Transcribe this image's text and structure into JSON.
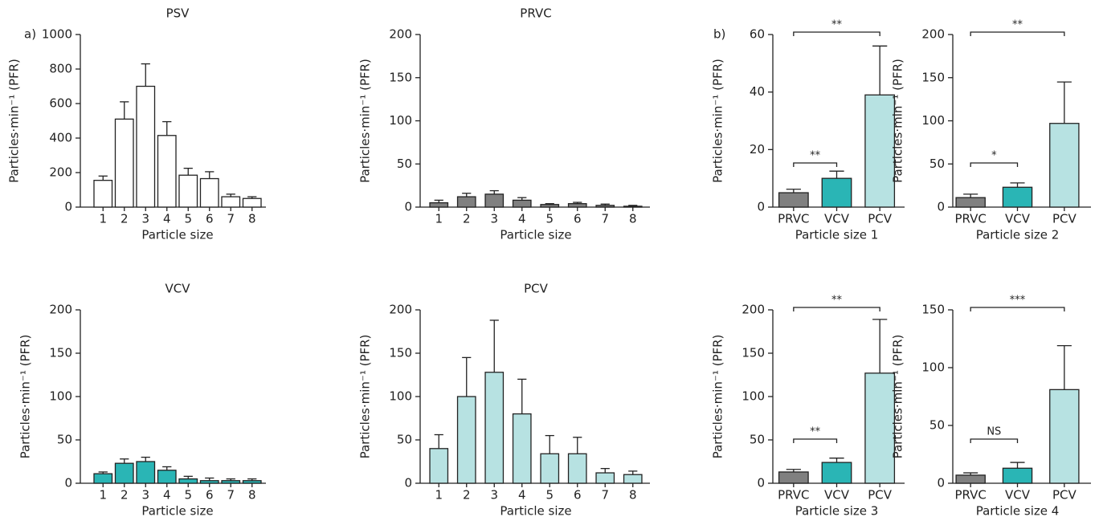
{
  "chart_data": [
    {
      "type": "bar",
      "panel_label": "a)",
      "title": "PSV",
      "categories": [
        "1",
        "2",
        "3",
        "4",
        "5",
        "6",
        "7",
        "8"
      ],
      "values": [
        155,
        510,
        700,
        415,
        185,
        165,
        60,
        50
      ],
      "errors": [
        25,
        100,
        130,
        80,
        40,
        40,
        15,
        10
      ],
      "color": "#ffffff",
      "ylim": [
        0,
        1000
      ],
      "yticks": [
        0,
        200,
        400,
        600,
        800,
        1000
      ],
      "y_label": "Particles·min⁻¹ (PFR)",
      "x_label": "Particle size"
    },
    {
      "type": "bar",
      "title": "PRVC",
      "categories": [
        "1",
        "2",
        "3",
        "4",
        "5",
        "6",
        "7",
        "8"
      ],
      "values": [
        5,
        12,
        15,
        8,
        3,
        4,
        2,
        1
      ],
      "errors": [
        3,
        4,
        4,
        3,
        1,
        1.5,
        1.5,
        1
      ],
      "color": "#808080",
      "ylim": [
        0,
        200
      ],
      "yticks": [
        0,
        50,
        100,
        150,
        200
      ],
      "y_label": "Particles·min⁻¹ (PFR)",
      "x_label": "Particle size"
    },
    {
      "type": "bar",
      "title": "VCV",
      "categories": [
        "1",
        "2",
        "3",
        "4",
        "5",
        "6",
        "7",
        "8"
      ],
      "values": [
        11,
        23,
        25,
        15,
        5,
        3,
        3,
        3
      ],
      "errors": [
        2,
        5,
        5,
        4,
        3,
        3,
        2,
        2
      ],
      "color": "#2ab5b5",
      "ylim": [
        0,
        200
      ],
      "yticks": [
        0,
        50,
        100,
        150,
        200
      ],
      "y_label": "Particles·min⁻¹ (PFR)",
      "x_label": "Particle size"
    },
    {
      "type": "bar",
      "title": "PCV",
      "categories": [
        "1",
        "2",
        "3",
        "4",
        "5",
        "6",
        "7",
        "8"
      ],
      "values": [
        40,
        100,
        128,
        80,
        34,
        34,
        12,
        10
      ],
      "errors": [
        16,
        45,
        60,
        40,
        21,
        19,
        5,
        4
      ],
      "color": "#b7e2e2",
      "ylim": [
        0,
        200
      ],
      "yticks": [
        0,
        50,
        100,
        150,
        200
      ],
      "y_label": "Particles·min⁻¹ (PFR)",
      "x_label": "Particle size"
    },
    {
      "type": "bar",
      "panel_label": "b)",
      "categories": [
        "PRVC",
        "VCV",
        "PCV"
      ],
      "values": [
        5,
        10,
        39
      ],
      "errors": [
        1.2,
        2.5,
        17
      ],
      "colors": [
        "#808080",
        "#2ab5b5",
        "#b7e2e2"
      ],
      "ylim": [
        0,
        60
      ],
      "yticks": [
        0,
        20,
        40,
        60
      ],
      "y_label": "Particles·min⁻¹ (PFR)",
      "x_label": "Particle size 1",
      "annotations": [
        "**",
        "**"
      ]
    },
    {
      "type": "bar",
      "categories": [
        "PRVC",
        "VCV",
        "PCV"
      ],
      "values": [
        11,
        23,
        97
      ],
      "errors": [
        4,
        5,
        48
      ],
      "colors": [
        "#808080",
        "#2ab5b5",
        "#b7e2e2"
      ],
      "ylim": [
        0,
        200
      ],
      "yticks": [
        0,
        50,
        100,
        150,
        200
      ],
      "y_label": "Particles·min⁻¹ (PFR)",
      "x_label": "Particle size 2",
      "annotations": [
        "**",
        "*"
      ]
    },
    {
      "type": "bar",
      "categories": [
        "PRVC",
        "VCV",
        "PCV"
      ],
      "values": [
        13,
        24,
        127
      ],
      "errors": [
        3,
        5,
        62
      ],
      "colors": [
        "#808080",
        "#2ab5b5",
        "#b7e2e2"
      ],
      "ylim": [
        0,
        200
      ],
      "yticks": [
        0,
        50,
        100,
        150,
        200
      ],
      "y_label": "Particles·min⁻¹ (PFR)",
      "x_label": "Particle size 3",
      "annotations": [
        "**",
        "**"
      ]
    },
    {
      "type": "bar",
      "categories": [
        "PRVC",
        "VCV",
        "PCV"
      ],
      "values": [
        7,
        13,
        81
      ],
      "errors": [
        2,
        5,
        38
      ],
      "colors": [
        "#808080",
        "#2ab5b5",
        "#b7e2e2"
      ],
      "ylim": [
        0,
        150
      ],
      "yticks": [
        0,
        50,
        100,
        150
      ],
      "y_label": "Particles·min⁻¹ (PFR)",
      "x_label": "Particle size 4",
      "annotations": [
        "***",
        "NS"
      ]
    }
  ]
}
